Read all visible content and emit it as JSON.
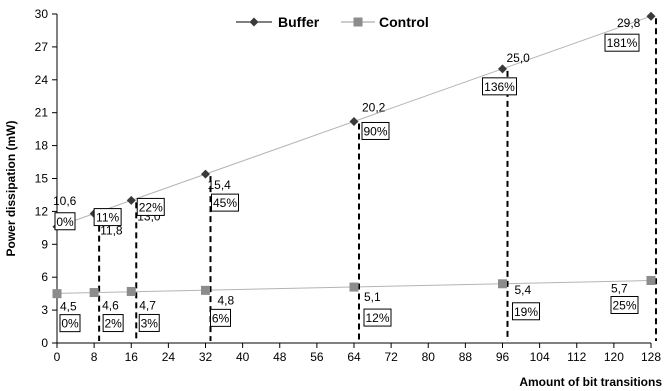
{
  "chart_data": {
    "type": "line",
    "xlabel": "Amount of bit transitions",
    "ylabel": "Power dissipation (mW)",
    "xlim": [
      0,
      128
    ],
    "ylim": [
      0,
      30
    ],
    "xticks": [
      0,
      8,
      16,
      24,
      32,
      40,
      48,
      56,
      64,
      72,
      80,
      88,
      96,
      104,
      112,
      120,
      128
    ],
    "yticks": [
      0,
      3,
      6,
      9,
      12,
      15,
      18,
      21,
      24,
      27,
      30
    ],
    "grid": false,
    "legend": "top-center",
    "series": [
      {
        "name": "Buffer",
        "marker": "diamond",
        "color": "#3a3a3a",
        "x": [
          0,
          8,
          16,
          32,
          64,
          96,
          128
        ],
        "y": [
          10.6,
          11.8,
          13.0,
          15.4,
          20.2,
          25.0,
          29.8
        ],
        "value_labels": [
          "10,6",
          "11,8",
          "13,0",
          "15,4",
          "20,2",
          "25,0",
          "29,8"
        ],
        "percent_labels": [
          "0%",
          "11%",
          "22%",
          "45%",
          "90%",
          "136%",
          "181%"
        ]
      },
      {
        "name": "Control",
        "marker": "square",
        "color": "#8c8c8c",
        "x": [
          0,
          8,
          16,
          32,
          64,
          96,
          128
        ],
        "y": [
          4.5,
          4.6,
          4.7,
          4.8,
          5.1,
          5.4,
          5.7
        ],
        "value_labels": [
          "4,5",
          "4,6",
          "4,7",
          "4,8",
          "5,1",
          "5,4",
          "5,7"
        ],
        "percent_labels": [
          "0%",
          "2%",
          "3%",
          "6%",
          "12%",
          "19%",
          "25%"
        ]
      }
    ]
  }
}
